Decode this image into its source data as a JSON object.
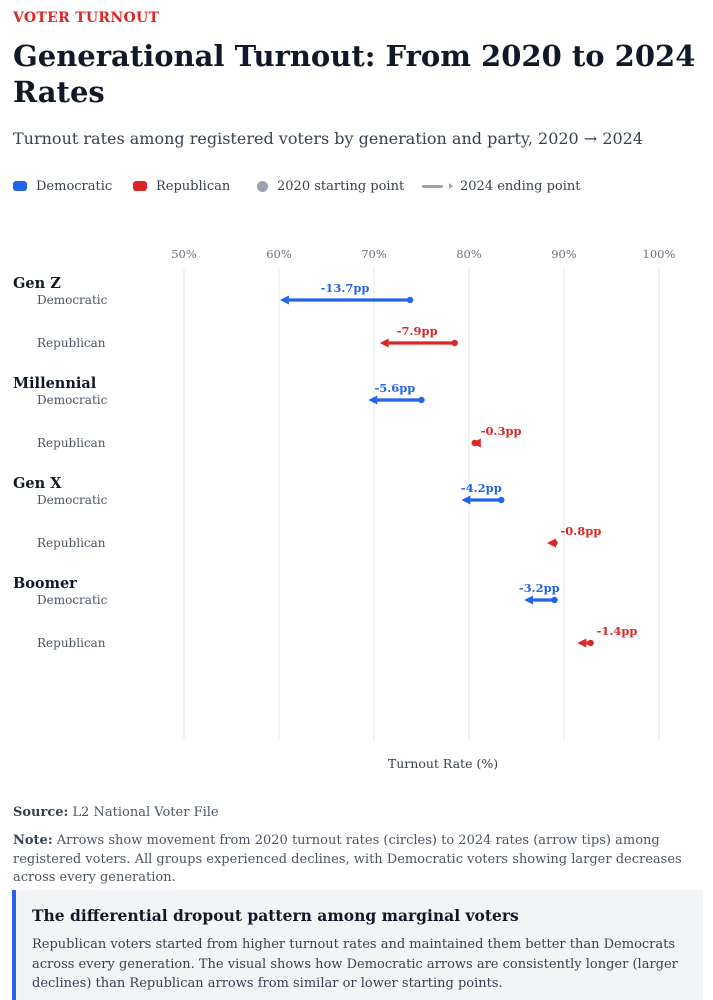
{
  "header": {
    "kicker": "VOTER TURNOUT",
    "title": "Generational Turnout: From 2020 to 2024 Rates",
    "subtitle": "Turnout rates among registered voters by generation and party, 2020 → 2024"
  },
  "legend": {
    "democratic": "Democratic",
    "republican": "Republican",
    "start": "2020 starting point",
    "end": "2024 ending point"
  },
  "colors": {
    "democratic": "#2563eb",
    "republican": "#dc2626",
    "neutral": "#9ca3af",
    "grid": "#e5e7eb"
  },
  "chart_data": {
    "type": "arrow-dot",
    "xlabel": "Turnout Rate (%)",
    "xlim": [
      45,
      105
    ],
    "ticks": [
      50,
      60,
      70,
      80,
      90,
      100
    ],
    "tick_labels": [
      "50%",
      "60%",
      "70%",
      "80%",
      "90%",
      "100%"
    ],
    "grid": true,
    "groups": [
      {
        "generation": "Gen Z",
        "rows": [
          {
            "party": "Democratic",
            "start": 73.8,
            "end": 60.1,
            "change": "-13.7pp"
          },
          {
            "party": "Republican",
            "start": 78.5,
            "end": 70.6,
            "change": "-7.9pp"
          }
        ]
      },
      {
        "generation": "Millennial",
        "rows": [
          {
            "party": "Democratic",
            "start": 75.0,
            "end": 69.4,
            "change": "-5.6pp"
          },
          {
            "party": "Republican",
            "start": 80.6,
            "end": 80.3,
            "change": "-0.3pp"
          }
        ]
      },
      {
        "generation": "Gen X",
        "rows": [
          {
            "party": "Democratic",
            "start": 83.4,
            "end": 79.2,
            "change": "-4.2pp"
          },
          {
            "party": "Republican",
            "start": 89.0,
            "end": 88.2,
            "change": "-0.8pp"
          }
        ]
      },
      {
        "generation": "Boomer",
        "rows": [
          {
            "party": "Democratic",
            "start": 89.0,
            "end": 85.8,
            "change": "-3.2pp"
          },
          {
            "party": "Republican",
            "start": 92.8,
            "end": 91.4,
            "change": "-1.4pp"
          }
        ]
      }
    ]
  },
  "footer": {
    "source_label": "Source:",
    "source_text": "L2 National Voter File",
    "note_label": "Note:",
    "note_text": "Arrows show movement from 2020 turnout rates (circles) to 2024 rates (arrow tips) among registered voters. All groups experienced declines, with Democratic voters showing larger decreases across every generation."
  },
  "callout": {
    "title": "The differential dropout pattern among marginal voters",
    "text": "Republican voters started from higher turnout rates and maintained them better than Democrats across every generation. The visual shows how Democratic arrows are consistently longer (larger declines) than Republican arrows from similar or lower starting points."
  }
}
